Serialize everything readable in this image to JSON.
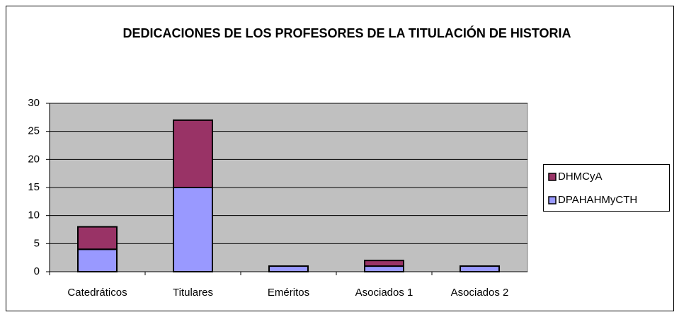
{
  "chart_data": {
    "type": "stacked_bar",
    "title": "DEDICACIONES DE LOS PROFESORES DE LA TITULACIÓN DE HISTORIA",
    "categories": [
      "Catedráticos",
      "Titulares",
      "Eméritos",
      "Asociados 1",
      "Asociados 2"
    ],
    "series": [
      {
        "name": "DPAHAHMyCTH",
        "color": "#9999ff",
        "values": [
          4,
          15,
          1,
          1,
          1
        ]
      },
      {
        "name": "DHMCyA",
        "color": "#993366",
        "values": [
          4,
          12,
          0,
          1,
          0
        ]
      }
    ],
    "ylim": [
      0,
      30
    ],
    "yticks": [
      0,
      5,
      10,
      15,
      20,
      25,
      30
    ],
    "grid": true,
    "legend": "right"
  }
}
